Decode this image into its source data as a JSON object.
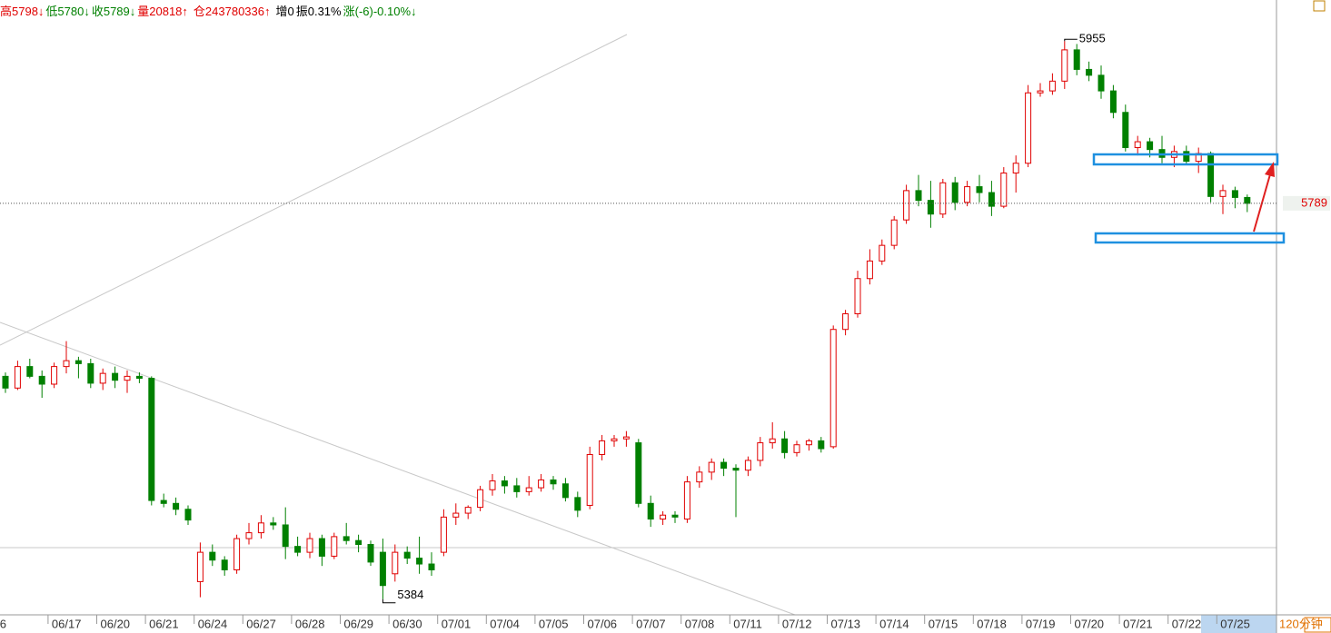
{
  "chart_data": {
    "type": "candlestick",
    "info": [
      {
        "text": "高5798↓",
        "color": "#e00000"
      },
      {
        "text": "低5780↓",
        "color": "#008000"
      },
      {
        "text": "收5789↓",
        "color": "#008000"
      },
      {
        "text": "量20818↑",
        "color": "#e00000"
      },
      {
        "text": "仓243780336↑",
        "color": "#e00000"
      },
      {
        "text": "增0",
        "color": "#000000"
      },
      {
        "text": "振0.31%",
        "color": "#000000"
      },
      {
        "text": "涨(-6)-0.10%↓",
        "color": "#008000"
      }
    ],
    "period": "120分钟",
    "up_color": "#e00000",
    "down_color": "#008000",
    "ylim": [
      5368,
      5997
    ],
    "categories": [
      "6",
      null,
      null,
      null,
      "06/17",
      null,
      null,
      null,
      "06/20",
      null,
      null,
      null,
      "06/21",
      null,
      null,
      null,
      "06/24",
      null,
      null,
      null,
      "06/27",
      null,
      null,
      null,
      "06/28",
      null,
      null,
      null,
      "06/29",
      null,
      null,
      null,
      "06/30",
      null,
      null,
      null,
      "07/01",
      null,
      null,
      null,
      "07/04",
      null,
      null,
      null,
      "07/05",
      null,
      null,
      null,
      "07/06",
      null,
      null,
      null,
      "07/07",
      null,
      null,
      null,
      "07/08",
      null,
      null,
      null,
      "07/11",
      null,
      null,
      null,
      "07/12",
      null,
      null,
      null,
      "07/13",
      null,
      null,
      null,
      "07/14",
      null,
      null,
      null,
      "07/15",
      null,
      null,
      null,
      "07/18",
      null,
      null,
      null,
      "07/19",
      null,
      null,
      null,
      "07/20",
      null,
      null,
      null,
      "07/21",
      null,
      null,
      null,
      "07/22",
      null,
      null,
      null,
      "07/25",
      null,
      null
    ],
    "open": [
      5612,
      5600,
      5622,
      5612,
      5604,
      5622,
      5628,
      5625,
      5605,
      5615,
      5608,
      5612,
      5610,
      5485,
      5482,
      5476,
      5402,
      5432,
      5424,
      5414,
      5446,
      5452,
      5462,
      5460,
      5438,
      5432,
      5446,
      5428,
      5448,
      5444,
      5440,
      5432,
      5410,
      5432,
      5426,
      5420,
      5432,
      5468,
      5472,
      5478,
      5496,
      5505,
      5500,
      5494,
      5498,
      5506,
      5502,
      5488,
      5480,
      5532,
      5546,
      5548,
      5544,
      5482,
      5466,
      5470,
      5466,
      5504,
      5514,
      5524,
      5518,
      5516,
      5526,
      5544,
      5548,
      5534,
      5542,
      5546,
      5540,
      5660,
      5676,
      5712,
      5730,
      5746,
      5772,
      5802,
      5792,
      5778,
      5810,
      5790,
      5806,
      5800,
      5786,
      5820,
      5830,
      5902,
      5904,
      5914,
      5946,
      5926,
      5920,
      5904,
      5882,
      5846,
      5852,
      5844,
      5836,
      5842,
      5832,
      5840,
      5796,
      5802,
      5795
    ],
    "high": [
      5616,
      5628,
      5630,
      5618,
      5626,
      5648,
      5632,
      5630,
      5620,
      5622,
      5618,
      5616,
      5612,
      5492,
      5488,
      5480,
      5442,
      5440,
      5428,
      5450,
      5462,
      5470,
      5468,
      5478,
      5448,
      5452,
      5450,
      5452,
      5462,
      5450,
      5444,
      5446,
      5440,
      5438,
      5448,
      5432,
      5476,
      5482,
      5480,
      5500,
      5512,
      5510,
      5508,
      5510,
      5512,
      5510,
      5508,
      5494,
      5540,
      5552,
      5552,
      5556,
      5548,
      5490,
      5474,
      5474,
      5510,
      5520,
      5528,
      5528,
      5522,
      5530,
      5550,
      5565,
      5556,
      5546,
      5548,
      5550,
      5664,
      5680,
      5720,
      5742,
      5752,
      5776,
      5808,
      5818,
      5812,
      5814,
      5816,
      5812,
      5818,
      5812,
      5826,
      5838,
      5910,
      5912,
      5922,
      5955,
      5952,
      5934,
      5930,
      5910,
      5890,
      5858,
      5856,
      5858,
      5848,
      5848,
      5846,
      5842,
      5808,
      5806,
      5798
    ],
    "low": [
      5595,
      5598,
      5610,
      5590,
      5600,
      5615,
      5610,
      5600,
      5598,
      5600,
      5595,
      5605,
      5480,
      5478,
      5470,
      5460,
      5386,
      5418,
      5408,
      5410,
      5440,
      5446,
      5455,
      5425,
      5428,
      5426,
      5418,
      5425,
      5440,
      5432,
      5418,
      5384,
      5402,
      5420,
      5410,
      5408,
      5428,
      5460,
      5466,
      5474,
      5490,
      5492,
      5488,
      5490,
      5494,
      5496,
      5484,
      5468,
      5476,
      5526,
      5540,
      5540,
      5478,
      5458,
      5460,
      5462,
      5462,
      5498,
      5506,
      5510,
      5468,
      5510,
      5520,
      5538,
      5528,
      5530,
      5536,
      5534,
      5538,
      5654,
      5672,
      5706,
      5726,
      5742,
      5768,
      5786,
      5764,
      5774,
      5782,
      5786,
      5790,
      5776,
      5784,
      5800,
      5826,
      5898,
      5900,
      5906,
      5920,
      5914,
      5896,
      5876,
      5842,
      5838,
      5836,
      5830,
      5826,
      5828,
      5820,
      5790,
      5778,
      5784,
      5780
    ],
    "close": [
      5600,
      5622,
      5612,
      5604,
      5622,
      5628,
      5625,
      5605,
      5615,
      5608,
      5612,
      5610,
      5485,
      5482,
      5476,
      5465,
      5432,
      5424,
      5414,
      5446,
      5452,
      5462,
      5460,
      5438,
      5432,
      5446,
      5428,
      5448,
      5444,
      5440,
      5422,
      5398,
      5432,
      5426,
      5420,
      5414,
      5468,
      5472,
      5478,
      5496,
      5505,
      5500,
      5494,
      5498,
      5506,
      5502,
      5488,
      5475,
      5532,
      5546,
      5548,
      5550,
      5482,
      5466,
      5470,
      5468,
      5504,
      5514,
      5524,
      5518,
      5516,
      5526,
      5544,
      5548,
      5534,
      5542,
      5546,
      5538,
      5660,
      5676,
      5712,
      5730,
      5746,
      5772,
      5802,
      5792,
      5778,
      5810,
      5790,
      5806,
      5800,
      5786,
      5820,
      5830,
      5902,
      5904,
      5914,
      5946,
      5926,
      5920,
      5904,
      5882,
      5846,
      5852,
      5844,
      5836,
      5842,
      5832,
      5840,
      5796,
      5802,
      5795,
      5789
    ]
  }
}
